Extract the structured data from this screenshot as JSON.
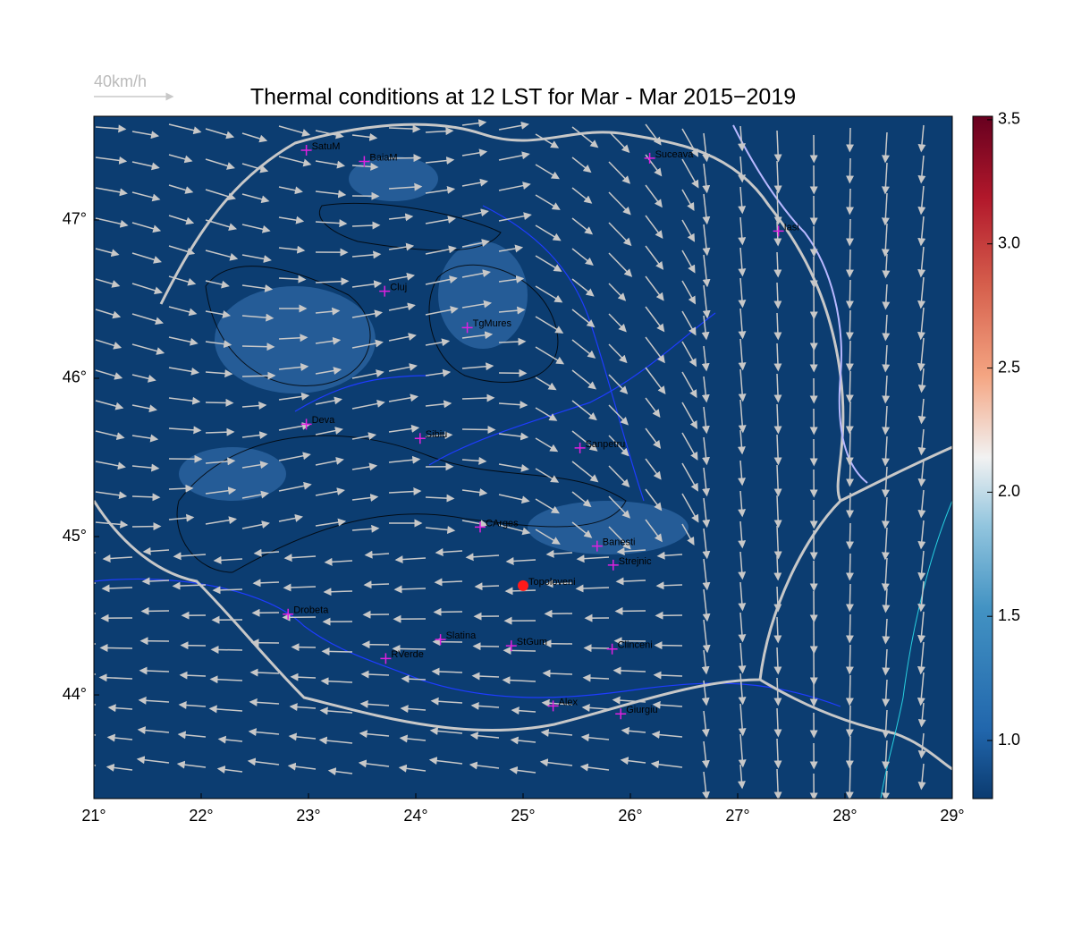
{
  "chart_data": {
    "type": "map",
    "title": "Thermal conditions at 12 LST for Mar - Mar  2015−2019",
    "wind_scale_label": "40km/h",
    "xlim": [
      21,
      29
    ],
    "ylim": [
      43.345,
      47.655
    ],
    "xticks": [
      {
        "value": 21,
        "label": "21°"
      },
      {
        "value": 22,
        "label": "22°"
      },
      {
        "value": 23,
        "label": "23°"
      },
      {
        "value": 24,
        "label": "24°"
      },
      {
        "value": 25,
        "label": "25°"
      },
      {
        "value": 26,
        "label": "26°"
      },
      {
        "value": 27,
        "label": "27°"
      },
      {
        "value": 28,
        "label": "28°"
      },
      {
        "value": 29,
        "label": "29°"
      }
    ],
    "yticks": [
      {
        "value": 44,
        "label": "44°"
      },
      {
        "value": 45,
        "label": "45°"
      },
      {
        "value": 46,
        "label": "46°"
      },
      {
        "value": 47,
        "label": "47°"
      }
    ],
    "zlim": [
      0.766,
      3.514
    ],
    "zticks": [
      {
        "value": 1,
        "label": "1.0"
      },
      1.5,
      {
        "value": 2,
        "label": "2.0"
      },
      2.5,
      {
        "value": 3,
        "label": "3.0"
      },
      3.5
    ],
    "cities": [
      {
        "label": "SatuM",
        "lon": 22.98,
        "lat": 47.44,
        "marker": "plus"
      },
      {
        "label": "BaiaM",
        "lon": 23.52,
        "lat": 47.37,
        "marker": "plus"
      },
      {
        "label": "Suceava",
        "lon": 26.18,
        "lat": 47.39,
        "marker": "plus"
      },
      {
        "label": "Iasi",
        "lon": 27.38,
        "lat": 46.93,
        "marker": "plus"
      },
      {
        "label": "Cluj",
        "lon": 23.71,
        "lat": 46.55,
        "marker": "plus"
      },
      {
        "label": "TgMures",
        "lon": 24.48,
        "lat": 46.32,
        "marker": "plus"
      },
      {
        "label": "Deva",
        "lon": 22.98,
        "lat": 45.71,
        "marker": "plus"
      },
      {
        "label": "Sibiu",
        "lon": 24.04,
        "lat": 45.62,
        "marker": "plus"
      },
      {
        "label": "Sanpetru",
        "lon": 25.53,
        "lat": 45.56,
        "marker": "plus"
      },
      {
        "label": "CArges",
        "lon": 24.6,
        "lat": 45.06,
        "marker": "plus"
      },
      {
        "label": "Banesti",
        "lon": 25.69,
        "lat": 44.94,
        "marker": "plus"
      },
      {
        "label": "Strejnic",
        "lon": 25.84,
        "lat": 44.82,
        "marker": "plus"
      },
      {
        "label": "Topoloveni",
        "lon": 25.0,
        "lat": 44.69,
        "marker": "dot"
      },
      {
        "label": "Drobeta",
        "lon": 22.81,
        "lat": 44.51,
        "marker": "plus"
      },
      {
        "label": "Slatina",
        "lon": 24.23,
        "lat": 44.35,
        "marker": "plus"
      },
      {
        "label": "StGum",
        "lon": 24.89,
        "lat": 44.31,
        "marker": "plus"
      },
      {
        "label": "Clinceni",
        "lon": 25.83,
        "lat": 44.29,
        "marker": "plus"
      },
      {
        "label": "RVerde",
        "lon": 23.72,
        "lat": 44.23,
        "marker": "plus"
      },
      {
        "label": "Alex",
        "lon": 25.28,
        "lat": 43.93,
        "marker": "plus"
      },
      {
        "label": "Giurgiu",
        "lon": 25.91,
        "lat": 43.88,
        "marker": "plus"
      }
    ]
  }
}
